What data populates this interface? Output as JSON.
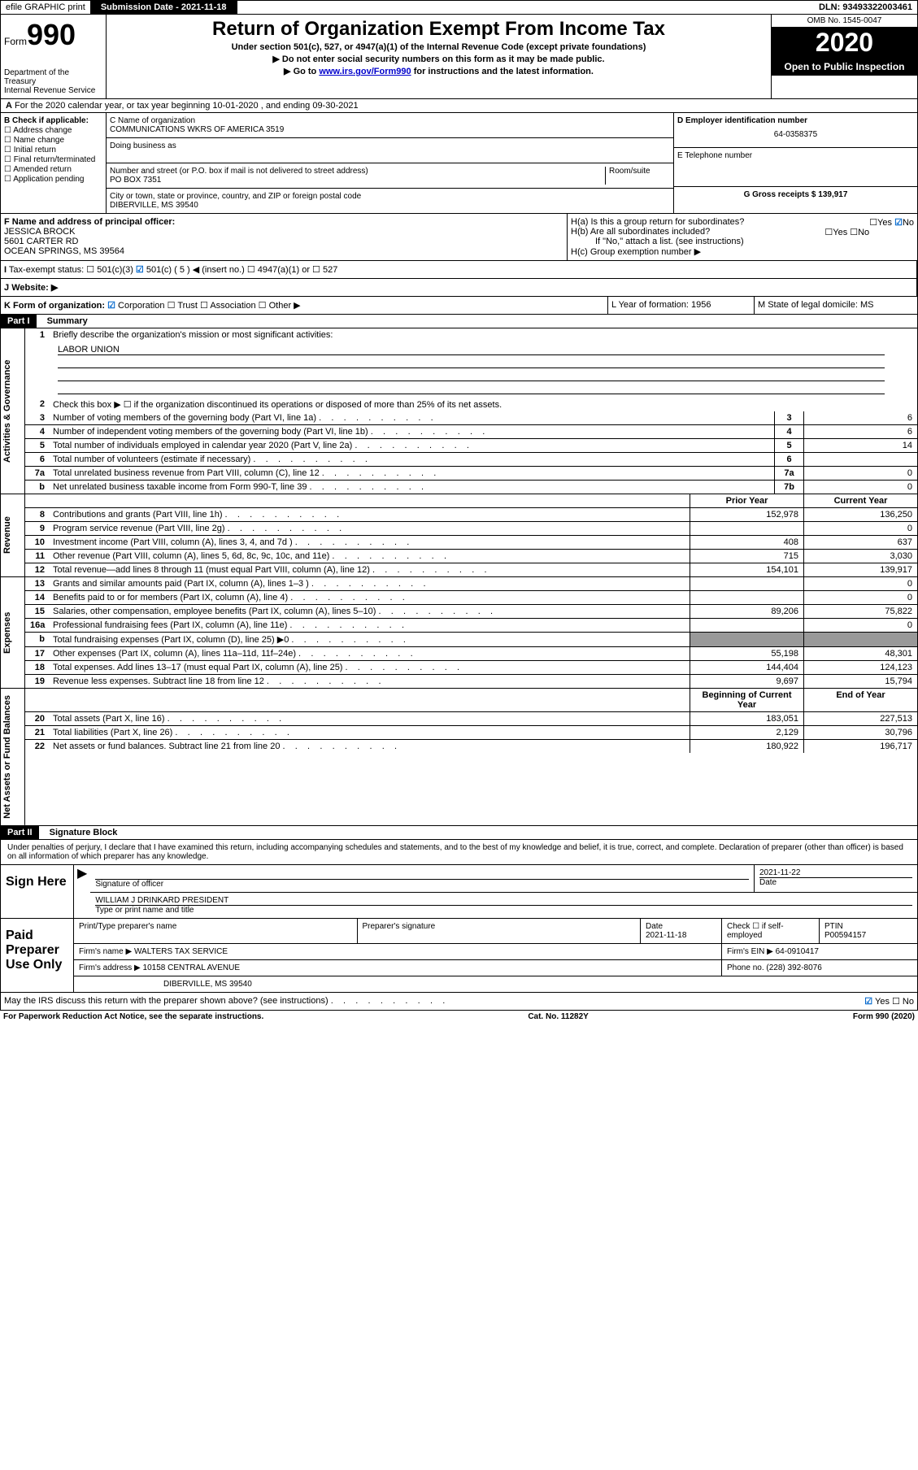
{
  "topbar": {
    "efile": "efile GRAPHIC print",
    "submission_label": "Submission Date - 2021-11-18",
    "dln": "DLN: 93493322003461"
  },
  "header": {
    "form_label": "Form",
    "form_num": "990",
    "dept": "Department of the Treasury\nInternal Revenue Service",
    "title": "Return of Organization Exempt From Income Tax",
    "sub1": "Under section 501(c), 527, or 4947(a)(1) of the Internal Revenue Code (except private foundations)",
    "sub2": "▶ Do not enter social security numbers on this form as it may be made public.",
    "sub3_pre": "▶ Go to ",
    "sub3_link": "www.irs.gov/Form990",
    "sub3_post": " for instructions and the latest information.",
    "omb": "OMB No. 1545-0047",
    "year": "2020",
    "open": "Open to Public Inspection"
  },
  "row_a": "For the 2020 calendar year, or tax year beginning 10-01-2020     , and ending 09-30-2021",
  "col_b": {
    "label": "B Check if applicable:",
    "items": [
      "Address change",
      "Name change",
      "Initial return",
      "Final return/terminated",
      "Amended return",
      "Application pending"
    ]
  },
  "col_c": {
    "name_label": "C Name of organization",
    "name": "COMMUNICATIONS WKRS OF AMERICA 3519",
    "dba_label": "Doing business as",
    "addr_label": "Number and street (or P.O. box if mail is not delivered to street address)",
    "room_label": "Room/suite",
    "addr": "PO BOX 7351",
    "city_label": "City or town, state or province, country, and ZIP or foreign postal code",
    "city": "DIBERVILLE, MS  39540"
  },
  "col_d": {
    "ein_label": "D Employer identification number",
    "ein": "64-0358375",
    "phone_label": "E Telephone number",
    "gross_label": "G Gross receipts $ 139,917"
  },
  "officer": {
    "label": "F  Name and address of principal officer:",
    "name": "JESSICA BROCK",
    "addr1": "5601 CARTER RD",
    "addr2": "OCEAN SPRINGS, MS  39564"
  },
  "h": {
    "ha": "H(a)  Is this a group return for subordinates?",
    "hb": "H(b)  Are all subordinates included?",
    "hb_note": "If \"No,\" attach a list. (see instructions)",
    "hc": "H(c)  Group exemption number ▶"
  },
  "tax_status": {
    "label": "Tax-exempt status:",
    "opts": [
      "501(c)(3)",
      "501(c) ( 5 ) ◀ (insert no.)",
      "4947(a)(1) or",
      "527"
    ]
  },
  "website_label": "Website: ▶",
  "row_k": {
    "k": "K Form of organization:",
    "opts": [
      "Corporation",
      "Trust",
      "Association",
      "Other ▶"
    ],
    "l": "L Year of formation: 1956",
    "m": "M State of legal domicile: MS"
  },
  "parts": {
    "p1": "Part I",
    "p1_title": "Summary",
    "p2": "Part II",
    "p2_title": "Signature Block"
  },
  "vtabs": {
    "gov": "Activities & Governance",
    "rev": "Revenue",
    "exp": "Expenses",
    "net": "Net Assets or Fund Balances"
  },
  "summary": {
    "line1": "Briefly describe the organization's mission or most significant activities:",
    "mission": "LABOR UNION",
    "line2": "Check this box ▶ ☐  if the organization discontinued its operations or disposed of more than 25% of its net assets.",
    "lines": [
      {
        "n": "3",
        "d": "Number of voting members of the governing body (Part VI, line 1a)",
        "b": "3",
        "v": "6"
      },
      {
        "n": "4",
        "d": "Number of independent voting members of the governing body (Part VI, line 1b)",
        "b": "4",
        "v": "6"
      },
      {
        "n": "5",
        "d": "Total number of individuals employed in calendar year 2020 (Part V, line 2a)",
        "b": "5",
        "v": "14"
      },
      {
        "n": "6",
        "d": "Total number of volunteers (estimate if necessary)",
        "b": "6",
        "v": ""
      },
      {
        "n": "7a",
        "d": "Total unrelated business revenue from Part VIII, column (C), line 12",
        "b": "7a",
        "v": "0"
      },
      {
        "n": "b",
        "d": "Net unrelated business taxable income from Form 990-T, line 39",
        "b": "7b",
        "v": "0"
      }
    ],
    "col_headers": {
      "prior": "Prior Year",
      "current": "Current Year",
      "beg": "Beginning of Current Year",
      "end": "End of Year"
    },
    "rev": [
      {
        "n": "8",
        "d": "Contributions and grants (Part VIII, line 1h)",
        "p": "152,978",
        "c": "136,250"
      },
      {
        "n": "9",
        "d": "Program service revenue (Part VIII, line 2g)",
        "p": "",
        "c": "0"
      },
      {
        "n": "10",
        "d": "Investment income (Part VIII, column (A), lines 3, 4, and 7d )",
        "p": "408",
        "c": "637"
      },
      {
        "n": "11",
        "d": "Other revenue (Part VIII, column (A), lines 5, 6d, 8c, 9c, 10c, and 11e)",
        "p": "715",
        "c": "3,030"
      },
      {
        "n": "12",
        "d": "Total revenue—add lines 8 through 11 (must equal Part VIII, column (A), line 12)",
        "p": "154,101",
        "c": "139,917"
      }
    ],
    "exp": [
      {
        "n": "13",
        "d": "Grants and similar amounts paid (Part IX, column (A), lines 1–3 )",
        "p": "",
        "c": "0"
      },
      {
        "n": "14",
        "d": "Benefits paid to or for members (Part IX, column (A), line 4)",
        "p": "",
        "c": "0"
      },
      {
        "n": "15",
        "d": "Salaries, other compensation, employee benefits (Part IX, column (A), lines 5–10)",
        "p": "89,206",
        "c": "75,822"
      },
      {
        "n": "16a",
        "d": "Professional fundraising fees (Part IX, column (A), line 11e)",
        "p": "",
        "c": "0"
      },
      {
        "n": "b",
        "d": "Total fundraising expenses (Part IX, column (D), line 25) ▶0",
        "p": "—shade—",
        "c": "—shade—"
      },
      {
        "n": "17",
        "d": "Other expenses (Part IX, column (A), lines 11a–11d, 11f–24e)",
        "p": "55,198",
        "c": "48,301"
      },
      {
        "n": "18",
        "d": "Total expenses. Add lines 13–17 (must equal Part IX, column (A), line 25)",
        "p": "144,404",
        "c": "124,123"
      },
      {
        "n": "19",
        "d": "Revenue less expenses. Subtract line 18 from line 12",
        "p": "9,697",
        "c": "15,794"
      }
    ],
    "net": [
      {
        "n": "20",
        "d": "Total assets (Part X, line 16)",
        "p": "183,051",
        "c": "227,513"
      },
      {
        "n": "21",
        "d": "Total liabilities (Part X, line 26)",
        "p": "2,129",
        "c": "30,796"
      },
      {
        "n": "22",
        "d": "Net assets or fund balances. Subtract line 21 from line 20",
        "p": "180,922",
        "c": "196,717"
      }
    ]
  },
  "sig": {
    "penalties": "Under penalties of perjury, I declare that I have examined this return, including accompanying schedules and statements, and to the best of my knowledge and belief, it is true, correct, and complete. Declaration of preparer (other than officer) is based on all information of which preparer has any knowledge.",
    "sign_here": "Sign Here",
    "sig_officer": "Signature of officer",
    "date_label": "Date",
    "sig_date": "2021-11-22",
    "officer_name": "WILLIAM J DRINKARD PRESIDENT",
    "type_name": "Type or print name and title",
    "paid": "Paid Preparer Use Only",
    "prep_name_label": "Print/Type preparer's name",
    "prep_sig_label": "Preparer's signature",
    "prep_date": "2021-11-18",
    "check_self": "Check ☐ if self-employed",
    "ptin_label": "PTIN",
    "ptin": "P00594157",
    "firm_name_label": "Firm's name    ▶",
    "firm_name": "WALTERS TAX SERVICE",
    "firm_ein_label": "Firm's EIN ▶",
    "firm_ein": "64-0910417",
    "firm_addr_label": "Firm's address ▶",
    "firm_addr1": "10158 CENTRAL AVENUE",
    "firm_addr2": "DIBERVILLE, MS  39540",
    "phone_label": "Phone no.",
    "phone": "(228) 392-8076",
    "discuss": "May the IRS discuss this return with the preparer shown above? (see instructions)"
  },
  "footer": {
    "pra": "For Paperwork Reduction Act Notice, see the separate instructions.",
    "cat": "Cat. No. 11282Y",
    "form": "Form 990 (2020)"
  }
}
